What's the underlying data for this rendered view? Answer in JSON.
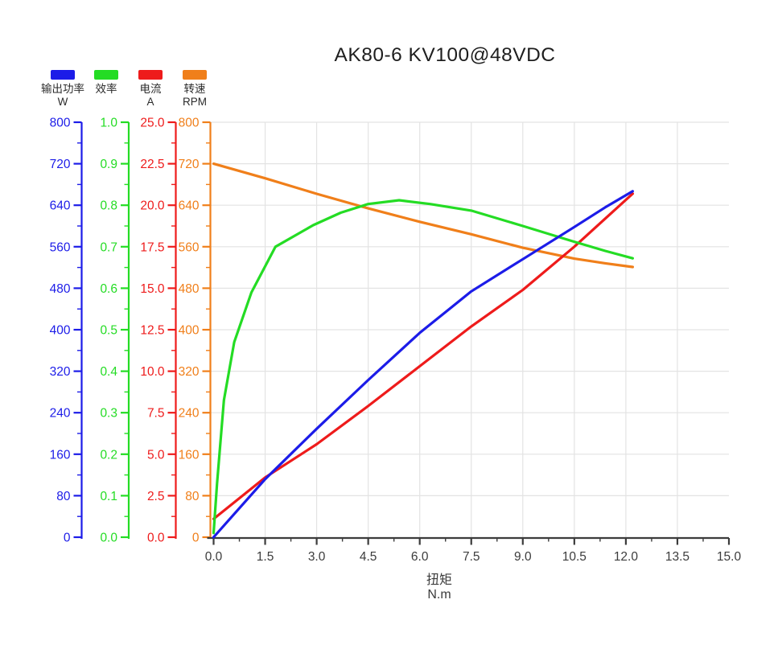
{
  "title": "AK80-6 KV100@48VDC",
  "legend": [
    {
      "label": "输出功率",
      "unit": "W",
      "color": "#1c1ce8"
    },
    {
      "label": "效率",
      "unit": "",
      "color": "#24dc24"
    },
    {
      "label": "电流",
      "unit": "A",
      "color": "#ee1b1b"
    },
    {
      "label": "转速",
      "unit": "RPM",
      "color": "#f07f1a"
    }
  ],
  "xlabel": {
    "name": "扭矩",
    "unit": "N.m"
  },
  "colors": {
    "grid": "#e3e3e3",
    "x_axis": "#3c3c3c",
    "title_text": "#1e1e1e"
  },
  "chart_data": {
    "type": "line",
    "title": "AK80-6 KV100@48VDC",
    "xlabel": "扭矩 (N.m)",
    "xlim": [
      0,
      15
    ],
    "x_major_step": 1.5,
    "x_tick_labels": [
      "0.0",
      "1.5",
      "3.0",
      "4.5",
      "6.0",
      "7.5",
      "9.0",
      "10.5",
      "12.0",
      "13.5",
      "15.0"
    ],
    "grid": true,
    "legend_position": "top-left",
    "y_axes": [
      {
        "id": "output_power_w",
        "label": "输出功率",
        "unit": "W",
        "color": "#1c1ce8",
        "min": 0,
        "max": 800,
        "tick_labels": [
          "800",
          "720",
          "640",
          "560",
          "480",
          "400",
          "320",
          "240",
          "160",
          "80",
          "0"
        ]
      },
      {
        "id": "efficiency",
        "label": "效率",
        "unit": "",
        "color": "#24dc24",
        "min": 0,
        "max": 1,
        "tick_labels": [
          "1.0",
          "0.9",
          "0.8",
          "0.7",
          "0.6",
          "0.5",
          "0.4",
          "0.3",
          "0.2",
          "0.1",
          "0.0"
        ]
      },
      {
        "id": "current_a",
        "label": "电流",
        "unit": "A",
        "color": "#ee1b1b",
        "min": 0,
        "max": 25,
        "tick_labels": [
          "25.0",
          "22.5",
          "20.0",
          "17.5",
          "15.0",
          "12.5",
          "10.0",
          "7.5",
          "5.0",
          "2.5",
          "0.0"
        ]
      },
      {
        "id": "rpm",
        "label": "转速",
        "unit": "RPM",
        "color": "#f07f1a",
        "min": 0,
        "max": 800,
        "tick_labels": [
          "800",
          "720",
          "640",
          "560",
          "480",
          "400",
          "320",
          "240",
          "160",
          "80",
          "0"
        ]
      }
    ],
    "series": [
      {
        "name": "输出功率",
        "axis": "output_power_w",
        "color": "#1c1ce8",
        "points": [
          [
            0,
            0
          ],
          [
            1.5,
            112
          ],
          [
            3,
            209
          ],
          [
            4.5,
            303
          ],
          [
            6,
            394
          ],
          [
            7.5,
            474
          ],
          [
            9,
            536
          ],
          [
            10.5,
            598
          ],
          [
            11.4,
            636
          ],
          [
            12.2,
            667
          ]
        ]
      },
      {
        "name": "效率",
        "axis": "efficiency",
        "color": "#24dc24",
        "points": [
          [
            0,
            0.01
          ],
          [
            0.1,
            0.13
          ],
          [
            0.3,
            0.33
          ],
          [
            0.6,
            0.47
          ],
          [
            1.1,
            0.59
          ],
          [
            1.8,
            0.7
          ],
          [
            2.9,
            0.752
          ],
          [
            3.7,
            0.782
          ],
          [
            4.5,
            0.803
          ],
          [
            5.4,
            0.812
          ],
          [
            6.3,
            0.803
          ],
          [
            7.5,
            0.787
          ],
          [
            9,
            0.75
          ],
          [
            10.5,
            0.712
          ],
          [
            11.4,
            0.69
          ],
          [
            12.2,
            0.672
          ]
        ]
      },
      {
        "name": "电流",
        "axis": "current_a",
        "color": "#ee1b1b",
        "points": [
          [
            0,
            1.1
          ],
          [
            1.5,
            3.6
          ],
          [
            3,
            5.6
          ],
          [
            4.5,
            7.9
          ],
          [
            6,
            10.3
          ],
          [
            7.5,
            12.7
          ],
          [
            9,
            14.9
          ],
          [
            10.5,
            17.5
          ],
          [
            12.2,
            20.7
          ]
        ]
      },
      {
        "name": "转速",
        "axis": "rpm",
        "color": "#f07f1a",
        "points": [
          [
            0,
            720
          ],
          [
            1.5,
            692
          ],
          [
            3,
            662
          ],
          [
            4.5,
            634
          ],
          [
            6,
            608
          ],
          [
            7.5,
            584
          ],
          [
            9,
            558
          ],
          [
            10.5,
            537
          ],
          [
            11.4,
            528
          ],
          [
            12.2,
            521
          ]
        ]
      }
    ]
  }
}
